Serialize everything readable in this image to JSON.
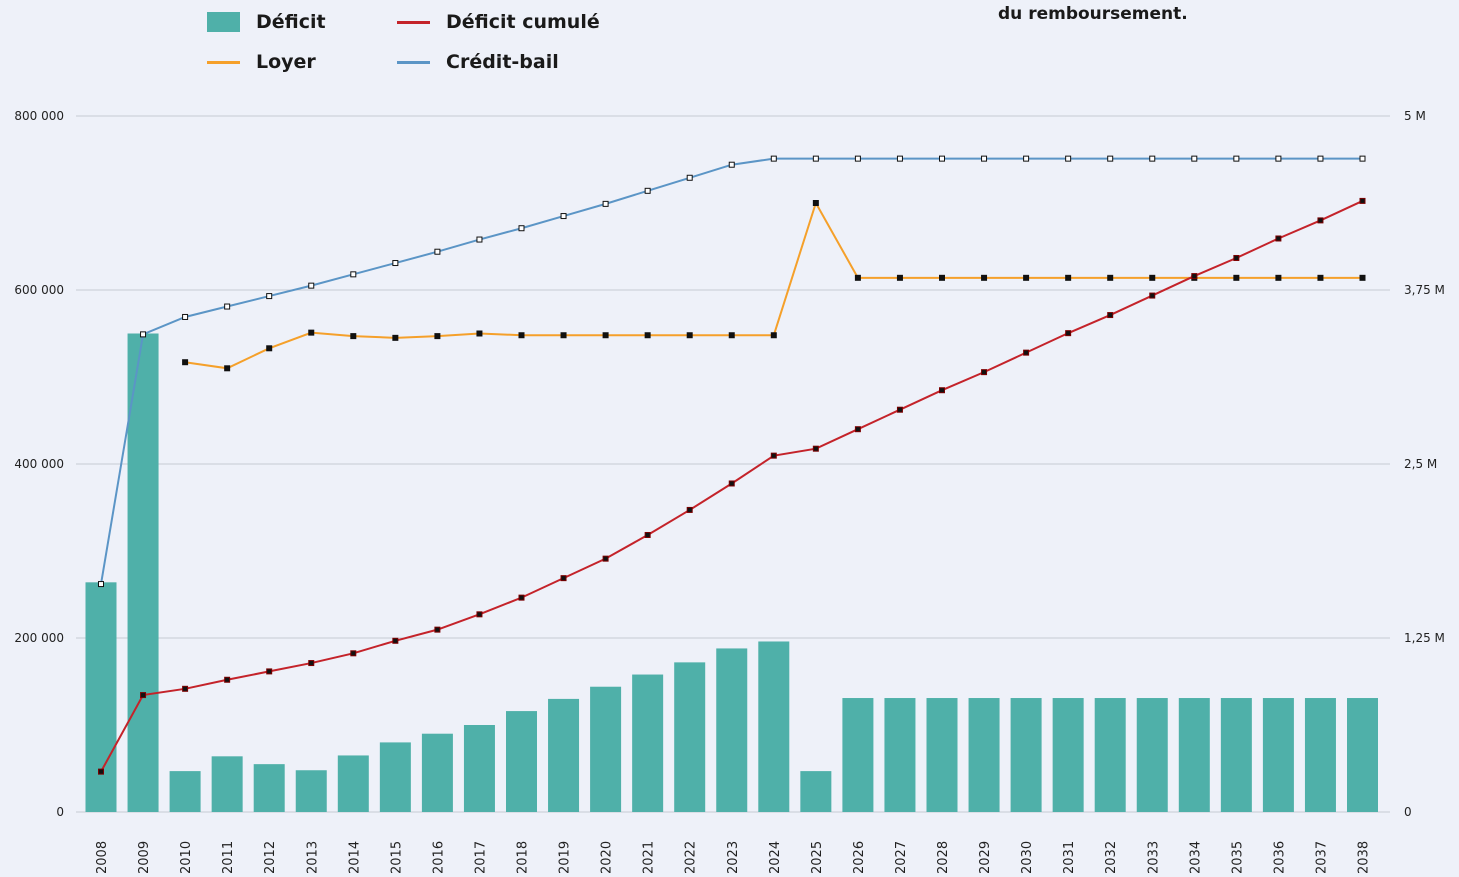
{
  "annotation": "du remboursement.",
  "legend": [
    {
      "id": "deficit",
      "label": "Déficit",
      "kind": "bar"
    },
    {
      "id": "deficit_cumule",
      "label": "Déficit cumulé",
      "kind": "line"
    },
    {
      "id": "loyer",
      "label": "Loyer",
      "kind": "line"
    },
    {
      "id": "credit_bail",
      "label": "Crédit-bail",
      "kind": "line"
    }
  ],
  "colors": {
    "deficit": "#4fb0a9",
    "deficit_cumule": "#c4232a",
    "loyer": "#f5a02a",
    "credit_bail": "#5b95c6",
    "grid": "#c6cad4",
    "background": "#eef1f9"
  },
  "chart_data": {
    "type": "bar",
    "categories": [
      "2008",
      "2009",
      "2010",
      "2011",
      "2012",
      "2013",
      "2014",
      "2015",
      "2016",
      "2017",
      "2018",
      "2019",
      "2020",
      "2021",
      "2022",
      "2023",
      "2024",
      "2025",
      "2026",
      "2027",
      "2028",
      "2029",
      "2030",
      "2031",
      "2032",
      "2033",
      "2034",
      "2035",
      "2036",
      "2037",
      "2038"
    ],
    "y_left": {
      "min": 0,
      "max": 800000,
      "ticks": [
        0,
        200000,
        400000,
        600000,
        800000
      ],
      "tick_labels": [
        "0",
        "200 000",
        "400 000",
        "600 000",
        "800 000"
      ]
    },
    "y_right": {
      "min": 0,
      "max": 5000000,
      "ticks": [
        0,
        1250000,
        2500000,
        3750000,
        5000000
      ],
      "tick_labels": [
        "0",
        "1,25 M",
        "2,5 M",
        "3,75 M",
        "5 M"
      ]
    },
    "grid": true,
    "legend_position": "top-left",
    "series": [
      {
        "name": "Déficit",
        "type": "bar",
        "axis": "left",
        "values": [
          264000,
          550000,
          47000,
          64000,
          55000,
          48000,
          65000,
          80000,
          90000,
          100000,
          116000,
          130000,
          144000,
          158000,
          172000,
          188000,
          196000,
          47000,
          131000,
          131000,
          131000,
          131000,
          131000,
          131000,
          131000,
          131000,
          131000,
          131000,
          131000,
          131000,
          131000
        ]
      },
      {
        "name": "Loyer",
        "type": "line",
        "axis": "left",
        "values": [
          null,
          null,
          517000,
          510000,
          533000,
          551000,
          547000,
          545000,
          547000,
          550000,
          548000,
          548000,
          548000,
          548000,
          548000,
          548000,
          548000,
          700000,
          614000,
          614000,
          614000,
          614000,
          614000,
          614000,
          614000,
          614000,
          614000,
          614000,
          614000,
          614000,
          614000
        ]
      },
      {
        "name": "Crédit-bail",
        "type": "line",
        "axis": "left",
        "values": [
          262000,
          549000,
          569000,
          581000,
          593000,
          605000,
          618000,
          631000,
          644000,
          658000,
          671000,
          685000,
          699000,
          714000,
          729000,
          744000,
          751000,
          751000,
          751000,
          751000,
          751000,
          751000,
          751000,
          751000,
          751000,
          751000,
          751000,
          751000,
          751000,
          751000,
          751000
        ]
      },
      {
        "name": "Déficit cumulé",
        "type": "line",
        "axis": "right",
        "values": [
          290000,
          840000,
          885000,
          950000,
          1010000,
          1070000,
          1140000,
          1230000,
          1310000,
          1420000,
          1540000,
          1680000,
          1820000,
          1990000,
          2170000,
          2360000,
          2560000,
          2610000,
          2750000,
          2890000,
          3030000,
          3160000,
          3300000,
          3440000,
          3570000,
          3710000,
          3850000,
          3980000,
          4120000,
          4250000,
          4390000
        ]
      }
    ]
  }
}
